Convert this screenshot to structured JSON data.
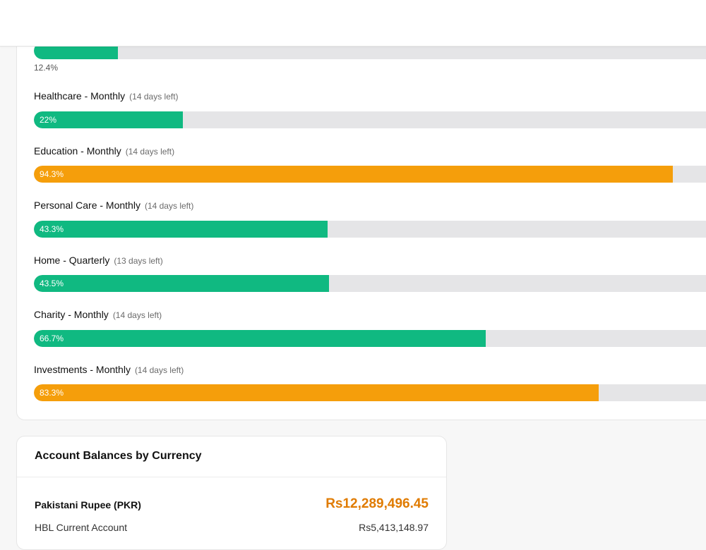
{
  "budgets": {
    "first": {
      "percent_label": "12.4%",
      "fraction": 0.124,
      "color": "green"
    },
    "items": [
      {
        "name": "Healthcare - Monthly",
        "days_left": "(14 days left)",
        "percent_label": "22%",
        "fraction": 0.22,
        "color": "green"
      },
      {
        "name": "Education - Monthly",
        "days_left": "(14 days left)",
        "percent_label": "94.3%",
        "fraction": 0.943,
        "color": "orange"
      },
      {
        "name": "Personal Care - Monthly",
        "days_left": "(14 days left)",
        "percent_label": "43.3%",
        "fraction": 0.433,
        "color": "green"
      },
      {
        "name": "Home - Quarterly",
        "days_left": "(13 days left)",
        "percent_label": "43.5%",
        "fraction": 0.435,
        "color": "green"
      },
      {
        "name": "Charity - Monthly",
        "days_left": "(14 days left)",
        "percent_label": "66.7%",
        "fraction": 0.667,
        "color": "green"
      },
      {
        "name": "Investments - Monthly",
        "days_left": "(14 days left)",
        "percent_label": "83.3%",
        "fraction": 0.833,
        "color": "orange"
      }
    ]
  },
  "balances": {
    "title": "Account Balances by Currency",
    "currency": {
      "name": "Pakistani Rupee (PKR)",
      "total": "Rs12,289,496.45",
      "total_color": "#e07b00"
    },
    "accounts": [
      {
        "name": "HBL Current Account",
        "amount": "Rs5,413,148.97"
      }
    ]
  },
  "colors": {
    "green": "#10b981",
    "orange": "#f59e0b",
    "track": "#e5e5e7"
  }
}
